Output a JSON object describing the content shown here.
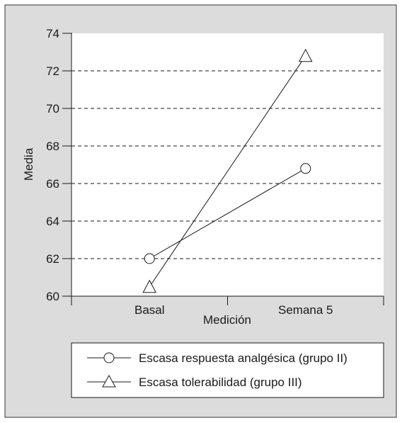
{
  "colors": {
    "panel_background": "#dcdcdc",
    "plot_background": "#ffffff",
    "stroke": "#1a1a1a"
  },
  "chart_data": {
    "type": "line",
    "title": "",
    "xlabel": "Medición",
    "ylabel": "Media",
    "categories": [
      "Basal",
      "Semana 5"
    ],
    "ylim": [
      60,
      74
    ],
    "yticks": [
      "60",
      "62",
      "64",
      "66",
      "68",
      "70",
      "72",
      "74"
    ],
    "grid": "horizontal-dashed",
    "legend_position": "bottom",
    "series": [
      {
        "name": "Escasa respuesta analgésica (grupo II)",
        "marker": "circle",
        "values": [
          62.0,
          66.8
        ]
      },
      {
        "name": "Escasa tolerabilidad (grupo III)",
        "marker": "triangle",
        "values": [
          60.5,
          72.8
        ]
      }
    ]
  }
}
